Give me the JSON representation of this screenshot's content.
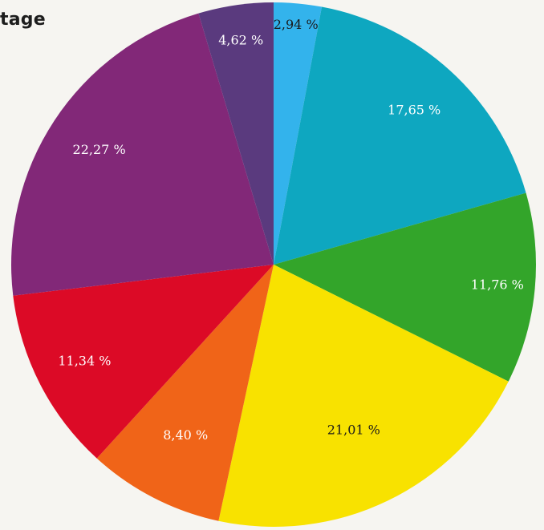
{
  "title": "tage",
  "chart_data": {
    "type": "pie",
    "title": "tage",
    "start": "12 o'clock",
    "direction": "clockwise",
    "slices": [
      {
        "label": "2,94 %",
        "value": 2.94,
        "color": "#33b3ec",
        "label_color": "#1a1a1a"
      },
      {
        "label": "17,65 %",
        "value": 17.65,
        "color": "#0ea7c0",
        "label_color": "#ffffff"
      },
      {
        "label": "11,76 %",
        "value": 11.76,
        "color": "#33a52a",
        "label_color": "#ffffff"
      },
      {
        "label": "21,01 %",
        "value": 21.01,
        "color": "#f8e200",
        "label_color": "#1a1a1a"
      },
      {
        "label": "8,40 %",
        "value": 8.4,
        "color": "#f06418",
        "label_color": "#ffffff"
      },
      {
        "label": "11,34 %",
        "value": 11.34,
        "color": "#dc0a26",
        "label_color": "#ffffff"
      },
      {
        "label": "22,27 %",
        "value": 22.27,
        "color": "#822878",
        "label_color": "#ffffff"
      },
      {
        "label": "4,62 %",
        "value": 4.62,
        "color": "#5a3a7e",
        "label_color": "#ffffff"
      }
    ]
  }
}
